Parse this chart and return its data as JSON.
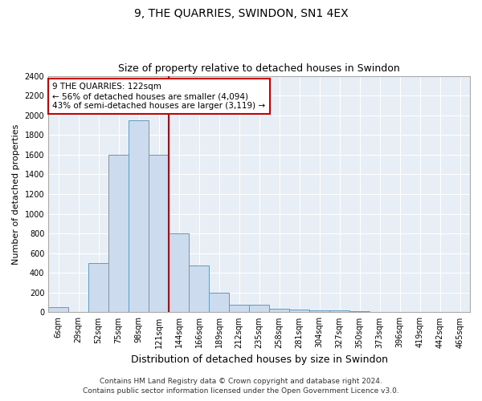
{
  "title": "9, THE QUARRIES, SWINDON, SN1 4EX",
  "subtitle": "Size of property relative to detached houses in Swindon",
  "xlabel": "Distribution of detached houses by size in Swindon",
  "ylabel": "Number of detached properties",
  "categories": [
    "6sqm",
    "29sqm",
    "52sqm",
    "75sqm",
    "98sqm",
    "121sqm",
    "144sqm",
    "166sqm",
    "189sqm",
    "212sqm",
    "235sqm",
    "258sqm",
    "281sqm",
    "304sqm",
    "327sqm",
    "350sqm",
    "373sqm",
    "396sqm",
    "419sqm",
    "442sqm",
    "465sqm"
  ],
  "values": [
    50,
    0,
    500,
    1600,
    1950,
    1600,
    800,
    475,
    200,
    80,
    80,
    35,
    30,
    20,
    20,
    10,
    5,
    5,
    0,
    0,
    0
  ],
  "bar_color": "#ccdcee",
  "bar_edge_color": "#6699bb",
  "vline_index": 5,
  "vline_color": "#cc0000",
  "annotation_text": "9 THE QUARRIES: 122sqm\n← 56% of detached houses are smaller (4,094)\n43% of semi-detached houses are larger (3,119) →",
  "annotation_box_edge": "#cc0000",
  "ylim": [
    0,
    2400
  ],
  "yticks": [
    0,
    200,
    400,
    600,
    800,
    1000,
    1200,
    1400,
    1600,
    1800,
    2000,
    2200,
    2400
  ],
  "footer1": "Contains HM Land Registry data © Crown copyright and database right 2024.",
  "footer2": "Contains public sector information licensed under the Open Government Licence v3.0.",
  "fig_bg_color": "#ffffff",
  "plot_bg_color": "#e8eef5",
  "grid_color": "#ffffff",
  "title_fontsize": 10,
  "subtitle_fontsize": 9,
  "xlabel_fontsize": 9,
  "ylabel_fontsize": 8,
  "tick_fontsize": 7,
  "annotation_fontsize": 7.5,
  "footer_fontsize": 6.5
}
